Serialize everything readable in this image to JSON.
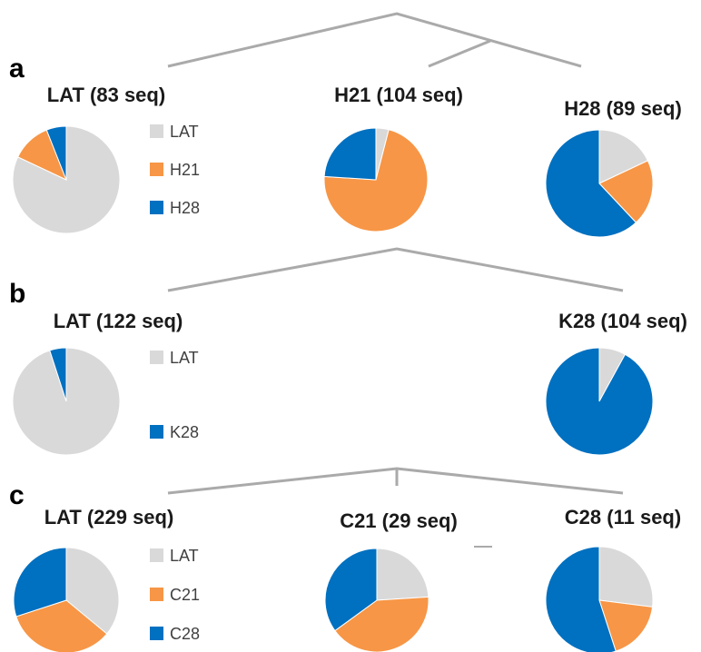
{
  "chart_data": [
    {
      "type": "pie",
      "panel": "a",
      "legend": [
        "LAT",
        "H21",
        "H28"
      ],
      "colors": {
        "LAT": "#d9d9d9",
        "H21": "#f79646",
        "H28": "#0070c0"
      },
      "pies": [
        {
          "title": "LAT (83 seq)",
          "slices": [
            {
              "label": "LAT",
              "value": 82
            },
            {
              "label": "H21",
              "value": 12
            },
            {
              "label": "H28",
              "value": 6
            }
          ]
        },
        {
          "title": "H21 (104 seq)",
          "slices": [
            {
              "label": "LAT",
              "value": 4
            },
            {
              "label": "H21",
              "value": 72
            },
            {
              "label": "H28",
              "value": 24
            }
          ]
        },
        {
          "title": "H28 (89 seq)",
          "slices": [
            {
              "label": "LAT",
              "value": 18
            },
            {
              "label": "H21",
              "value": 20
            },
            {
              "label": "H28",
              "value": 62
            }
          ]
        }
      ]
    },
    {
      "type": "pie",
      "panel": "b",
      "legend": [
        "LAT",
        "K28"
      ],
      "colors": {
        "LAT": "#d9d9d9",
        "K28": "#0070c0"
      },
      "pies": [
        {
          "title": "LAT (122 seq)",
          "slices": [
            {
              "label": "LAT",
              "value": 95
            },
            {
              "label": "K28",
              "value": 5
            }
          ]
        },
        {
          "title": "K28 (104 seq)",
          "slices": [
            {
              "label": "LAT",
              "value": 8
            },
            {
              "label": "K28",
              "value": 92
            }
          ]
        }
      ]
    },
    {
      "type": "pie",
      "panel": "c",
      "legend": [
        "LAT",
        "C21",
        "C28"
      ],
      "colors": {
        "LAT": "#d9d9d9",
        "C21": "#f79646",
        "C28": "#0070c0"
      },
      "pies": [
        {
          "title": "LAT (229 seq)",
          "slices": [
            {
              "label": "LAT",
              "value": 36
            },
            {
              "label": "C21",
              "value": 34
            },
            {
              "label": "C28",
              "value": 30
            }
          ]
        },
        {
          "title": "C21 (29 seq)",
          "slices": [
            {
              "label": "LAT",
              "value": 24
            },
            {
              "label": "C21",
              "value": 41
            },
            {
              "label": "C28",
              "value": 35
            }
          ]
        },
        {
          "title": "C28 (11 seq)",
          "slices": [
            {
              "label": "LAT",
              "value": 27
            },
            {
              "label": "C21",
              "value": 18
            },
            {
              "label": "C28",
              "value": 55
            }
          ]
        }
      ]
    }
  ]
}
